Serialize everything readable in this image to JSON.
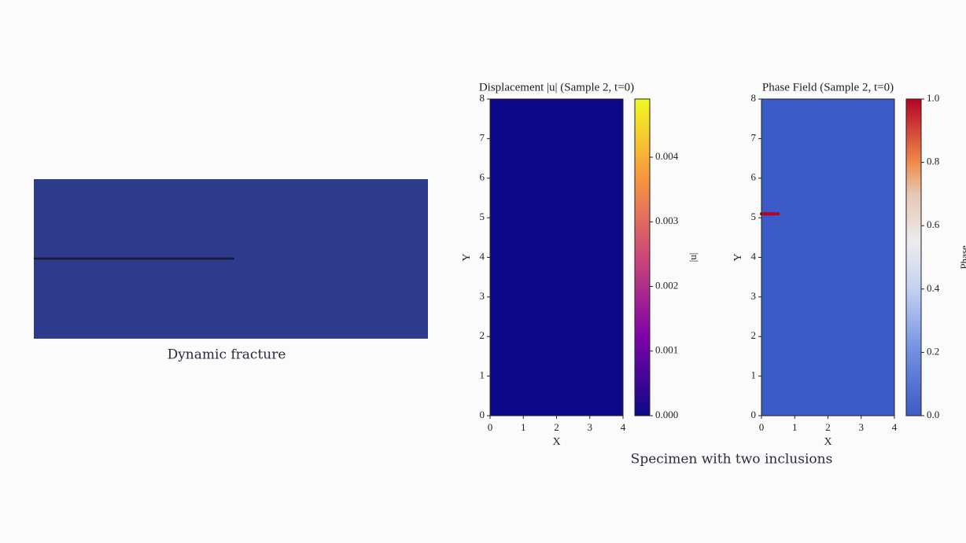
{
  "captions": [
    "Dynamic fracture",
    "Specimen with two inclusions"
  ],
  "chart_data": [
    {
      "type": "heatmap",
      "title": "Displacement |u| (Sample 2, t=0)",
      "x_label": "X",
      "y_label": "Y",
      "colorbar_label": "|u|",
      "colormap": "plasma",
      "field_value": 0,
      "xlim": [
        0,
        4
      ],
      "ylim": [
        0,
        8
      ],
      "xticks": [
        0,
        1,
        2,
        3,
        4
      ],
      "yticks": [
        0,
        1,
        2,
        3,
        4,
        5,
        6,
        7,
        8
      ],
      "clim": [
        0,
        0.0049
      ],
      "cticks": [
        {
          "value": 0,
          "label": "0.000"
        },
        {
          "value": 0.001,
          "label": "0.001"
        },
        {
          "value": 0.002,
          "label": "0.002"
        },
        {
          "value": 0.003,
          "label": "0.003"
        },
        {
          "value": 0.004,
          "label": "0.004"
        }
      ]
    },
    {
      "type": "heatmap",
      "title": "Phase Field (Sample 2, t=0)",
      "x_label": "X",
      "y_label": "Y",
      "colorbar_label": "Phase",
      "colormap": "coolwarm",
      "field_value": 0,
      "crack": {
        "x": [
          0,
          0.5
        ],
        "y": 5.1,
        "value": 1
      },
      "xlim": [
        0,
        4
      ],
      "ylim": [
        0,
        8
      ],
      "xticks": [
        0,
        1,
        2,
        3,
        4
      ],
      "yticks": [
        0,
        1,
        2,
        3,
        4,
        5,
        6,
        7,
        8
      ],
      "clim": [
        0,
        1
      ],
      "cticks": [
        {
          "value": 0,
          "label": "0.0"
        },
        {
          "value": 0.2,
          "label": "0.2"
        },
        {
          "value": 0.4,
          "label": "0.4"
        },
        {
          "value": 0.6,
          "label": "0.6"
        },
        {
          "value": 0.8,
          "label": "0.8"
        },
        {
          "value": 1,
          "label": "1.0"
        }
      ]
    }
  ]
}
